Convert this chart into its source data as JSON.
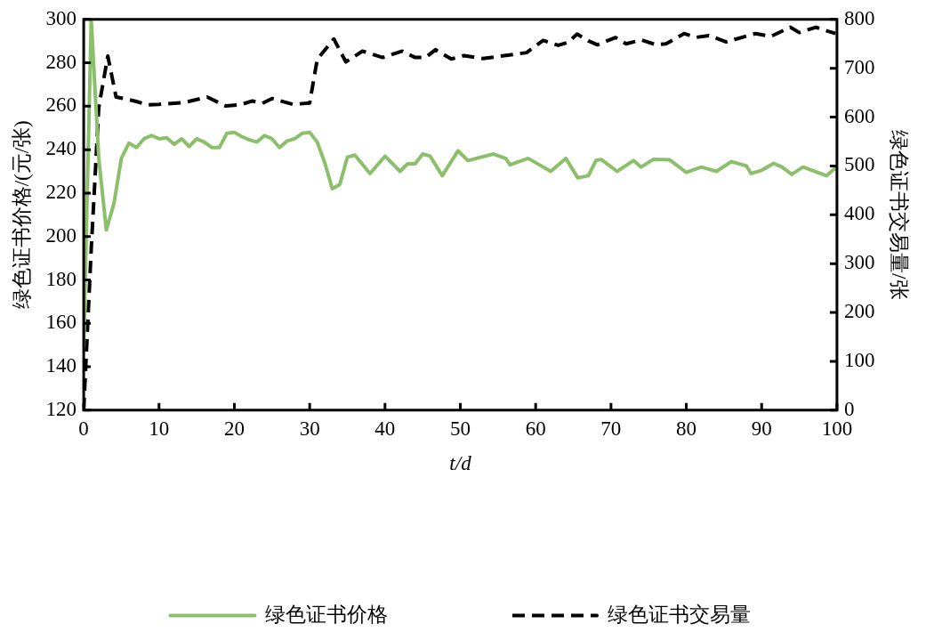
{
  "chart_data": {
    "type": "line",
    "xlabel": "t/d",
    "ylabel": "绿色证书价格/(元/张)",
    "y2label": "绿色证书交易量/张",
    "xlim": [
      0,
      100
    ],
    "xticks": [
      0,
      10,
      20,
      30,
      40,
      50,
      60,
      70,
      80,
      90,
      100
    ],
    "ylim": [
      120,
      300
    ],
    "yticks": [
      120,
      140,
      160,
      180,
      200,
      220,
      240,
      260,
      280,
      300
    ],
    "y2lim": [
      0,
      800
    ],
    "y2ticks": [
      0,
      100,
      200,
      300,
      400,
      500,
      600,
      700,
      800
    ],
    "grid": false,
    "legend": "bottom",
    "marker": "none",
    "series": [
      {
        "name": "绿色证书价格",
        "color": "#8cbf6c",
        "line_style": "solid",
        "x": [
          0,
          1,
          2,
          3,
          4,
          5,
          6,
          7,
          8,
          9,
          10,
          11,
          12,
          13,
          14,
          15,
          16,
          17,
          18,
          19,
          20,
          21,
          22,
          23,
          24,
          25,
          26,
          27,
          28,
          29,
          30,
          31,
          32,
          33,
          34,
          35,
          36,
          38,
          40,
          42,
          43,
          44,
          45,
          46,
          47.6,
          49.7,
          51,
          54.4,
          56,
          56.6,
          59,
          62,
          64,
          65.6,
          67,
          68,
          68.7,
          70.8,
          73,
          74,
          75.6,
          77.8,
          80,
          82,
          84,
          86,
          88,
          88.6,
          90,
          91.6,
          92.7,
          94,
          95.5,
          98.6,
          99.6,
          100
        ],
        "values": [
          149,
          300,
          236,
          203,
          215,
          236,
          243,
          241,
          245,
          246.5,
          245,
          245.5,
          242.5,
          245,
          241.5,
          245,
          243.5,
          241,
          241,
          247.5,
          248,
          246,
          244.5,
          243.5,
          246.5,
          245,
          241,
          244,
          245,
          247.5,
          248,
          243.5,
          234,
          222,
          224,
          236.5,
          237.5,
          229,
          237,
          230,
          233.5,
          233.5,
          238,
          237,
          228,
          239.5,
          235,
          238,
          236,
          233,
          236,
          230,
          236,
          227,
          228,
          235,
          235.5,
          230,
          235,
          232,
          235.5,
          235.3,
          229.5,
          232,
          230,
          234.5,
          232.5,
          229,
          230.5,
          233.7,
          232,
          228.6,
          232,
          228,
          231,
          231
        ]
      },
      {
        "name": "绿色证书交易量",
        "color": "#000000",
        "line_style": "dashed",
        "axis": "y2",
        "x": [
          0,
          1,
          2,
          3.2,
          4.3,
          5.6,
          7,
          8.4,
          10,
          13.4,
          16.4,
          18.8,
          20.7,
          22.4,
          23.7,
          25,
          27.8,
          30,
          31,
          33.2,
          34.8,
          37,
          39.7,
          42.3,
          44,
          45.4,
          46.7,
          48.8,
          50.5,
          53,
          55,
          58.8,
          61,
          63,
          64.3,
          65.5,
          67,
          68.2,
          70.6,
          72,
          74,
          76,
          77.3,
          79.7,
          81.2,
          83,
          85.3,
          89.2,
          91.2,
          93.8,
          95,
          97.2,
          99.8
        ],
        "values": [
          0,
          330,
          620,
          725,
          641,
          637,
          632,
          625,
          626,
          630,
          641,
          623,
          625,
          633,
          628,
          638,
          626,
          629,
          718,
          760,
          713,
          735,
          722,
          735,
          722,
          722,
          738,
          719,
          726,
          720,
          724,
          732,
          757,
          747,
          753,
          770,
          756,
          748,
          763,
          750,
          758,
          748,
          750,
          771,
          763,
          767,
          754,
          771,
          765,
          784,
          773,
          784,
          771
        ]
      }
    ]
  }
}
